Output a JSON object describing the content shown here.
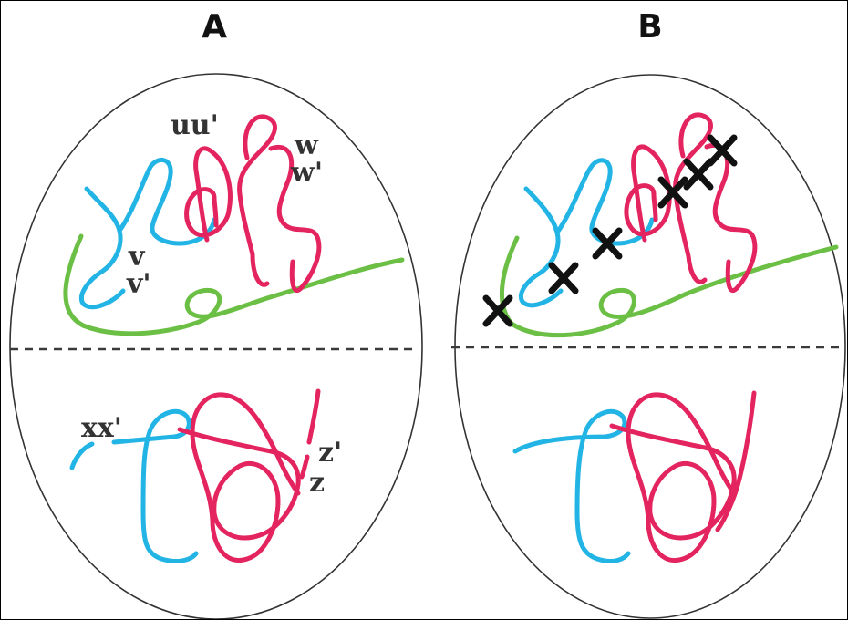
{
  "colors": {
    "blue": "#22b4e4",
    "pink": "#e3245f",
    "green": "#6cbf45",
    "outline": "#333333",
    "cross": "#111111"
  },
  "panels": [
    {
      "id": "A",
      "label": "A",
      "labels": {
        "uu": "uu'",
        "w": "w",
        "w_prime": "w'",
        "v": "v",
        "v_prime": "v'",
        "xx": "xx'",
        "z_prime": "z'",
        "z": "z"
      },
      "cross_marks": 0
    },
    {
      "id": "B",
      "label": "B",
      "cross_marks": 6
    }
  ]
}
